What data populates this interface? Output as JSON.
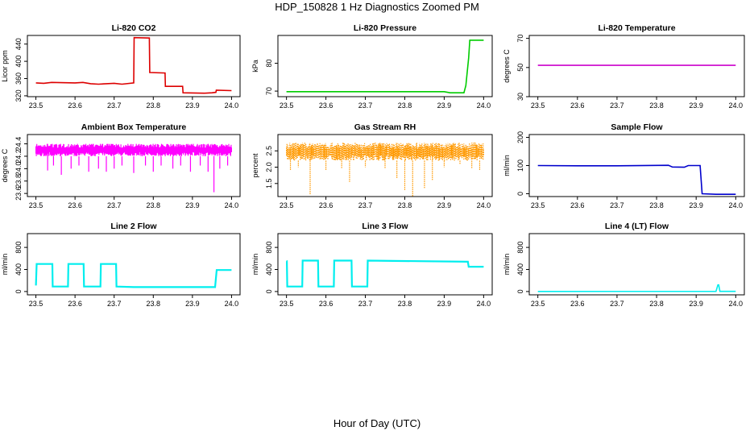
{
  "page_title": "HDP_150828  1 Hz Diagnostics Zoomed PM",
  "xlabel": "Hour of Day (UTC)",
  "chart_data": [
    {
      "type": "line",
      "title": "Li-820 CO2",
      "ylabel": "Licor ppm",
      "xlim": [
        23.5,
        24.0
      ],
      "xticks": [
        "23.5",
        "23.6",
        "23.7",
        "23.8",
        "23.9",
        "24.0"
      ],
      "ylim": [
        318,
        460
      ],
      "yticks": [
        "320",
        "360",
        "400",
        "440"
      ],
      "color": "#dd0000",
      "series": [
        {
          "x": [
            23.5,
            23.52,
            23.54,
            23.6,
            23.62,
            23.64,
            23.66,
            23.7,
            23.72,
            23.75,
            23.751,
            23.79,
            23.791,
            23.83,
            23.831,
            23.875,
            23.876,
            23.93,
            23.95,
            23.96,
            23.961,
            24.0
          ],
          "y": [
            350,
            349,
            351,
            350,
            351,
            348,
            347,
            349,
            347,
            350,
            455,
            454,
            374,
            373,
            342,
            342,
            327,
            326,
            327,
            328,
            333,
            332
          ]
        }
      ]
    },
    {
      "type": "line",
      "title": "Li-820 Pressure",
      "ylabel": "kPa",
      "xlim": [
        23.5,
        24.0
      ],
      "xticks": [
        "23.5",
        "23.6",
        "23.7",
        "23.8",
        "23.9",
        "24.0"
      ],
      "ylim": [
        68,
        90
      ],
      "yticks": [
        "70",
        "80"
      ],
      "color": "#00cc00",
      "series": [
        {
          "x": [
            23.5,
            23.7,
            23.9,
            23.915,
            23.95,
            23.955,
            23.962,
            23.965,
            24.0
          ],
          "y": [
            69.8,
            69.8,
            69.8,
            69.4,
            69.4,
            72.0,
            82.0,
            88.3,
            88.3
          ]
        }
      ]
    },
    {
      "type": "line",
      "title": "Li-820 Temperature",
      "ylabel": "degrees C",
      "xlim": [
        23.5,
        24.0
      ],
      "xticks": [
        "23.5",
        "23.6",
        "23.7",
        "23.8",
        "23.9",
        "24.0"
      ],
      "ylim": [
        30,
        72
      ],
      "yticks": [
        "30",
        "50",
        "70"
      ],
      "color": "#cc00cc",
      "series": [
        {
          "x": [
            23.5,
            24.0
          ],
          "y": [
            51.5,
            51.5
          ]
        }
      ]
    },
    {
      "type": "line",
      "title": "Ambient Box Temperature",
      "ylabel": "degrees C",
      "xlim": [
        23.5,
        24.0
      ],
      "xticks": [
        "23.5",
        "23.6",
        "23.7",
        "23.8",
        "23.9",
        "24.0"
      ],
      "ylim": [
        23.55,
        24.55
      ],
      "yticks": [
        "23.6",
        "23.8",
        "24.0",
        "24.2",
        "24.4"
      ],
      "color": "#ff00ff",
      "band": {
        "low": 24.2,
        "high": 24.4
      },
      "spikes": [
        {
          "x": 23.53,
          "y": 23.97
        },
        {
          "x": 23.545,
          "y": 24.05
        },
        {
          "x": 23.565,
          "y": 23.9
        },
        {
          "x": 23.59,
          "y": 24.0
        },
        {
          "x": 23.61,
          "y": 24.05
        },
        {
          "x": 23.635,
          "y": 23.95
        },
        {
          "x": 23.66,
          "y": 24.0
        },
        {
          "x": 23.68,
          "y": 23.95
        },
        {
          "x": 23.7,
          "y": 24.0
        },
        {
          "x": 23.72,
          "y": 24.05
        },
        {
          "x": 23.75,
          "y": 23.93
        },
        {
          "x": 23.78,
          "y": 24.05
        },
        {
          "x": 23.8,
          "y": 23.95
        },
        {
          "x": 23.82,
          "y": 24.05
        },
        {
          "x": 23.85,
          "y": 24.0
        },
        {
          "x": 23.87,
          "y": 24.05
        },
        {
          "x": 23.895,
          "y": 23.95
        },
        {
          "x": 23.92,
          "y": 24.05
        },
        {
          "x": 23.94,
          "y": 23.95
        },
        {
          "x": 23.955,
          "y": 23.62
        },
        {
          "x": 23.97,
          "y": 24.0
        },
        {
          "x": 23.99,
          "y": 24.05
        }
      ]
    },
    {
      "type": "scatter",
      "title": "Gas Stream RH",
      "ylabel": "percent",
      "xlim": [
        23.5,
        24.0
      ],
      "xticks": [
        "23.5",
        "23.6",
        "23.7",
        "23.8",
        "23.9",
        "24.0"
      ],
      "ylim": [
        1.1,
        3.0
      ],
      "yticks": [
        "1.5",
        "2.0",
        "2.5"
      ],
      "color": "#ff9900",
      "band": {
        "low": 2.2,
        "high": 2.75
      },
      "spikes": [
        {
          "x": 23.51,
          "y": 1.9
        },
        {
          "x": 23.53,
          "y": 2.0
        },
        {
          "x": 23.56,
          "y": 1.15
        },
        {
          "x": 23.6,
          "y": 1.9
        },
        {
          "x": 23.64,
          "y": 1.95
        },
        {
          "x": 23.66,
          "y": 1.55
        },
        {
          "x": 23.7,
          "y": 2.0
        },
        {
          "x": 23.75,
          "y": 1.95
        },
        {
          "x": 23.78,
          "y": 1.65
        },
        {
          "x": 23.8,
          "y": 1.3
        },
        {
          "x": 23.82,
          "y": 1.1
        },
        {
          "x": 23.85,
          "y": 1.35
        },
        {
          "x": 23.87,
          "y": 1.6
        },
        {
          "x": 23.9,
          "y": 2.0
        },
        {
          "x": 23.94,
          "y": 2.1
        },
        {
          "x": 23.97,
          "y": 1.95
        },
        {
          "x": 23.99,
          "y": 1.9
        }
      ]
    },
    {
      "type": "line",
      "title": "Sample Flow",
      "ylabel": "ml/min",
      "xlim": [
        23.5,
        24.0
      ],
      "xticks": [
        "23.5",
        "23.6",
        "23.7",
        "23.8",
        "23.9",
        "24.0"
      ],
      "ylim": [
        -10,
        210
      ],
      "yticks": [
        "0",
        "100",
        "200"
      ],
      "color": "#0000cc",
      "series": [
        {
          "x": [
            23.5,
            23.6,
            23.7,
            23.83,
            23.84,
            23.87,
            23.88,
            23.91,
            23.912,
            23.915,
            23.95,
            24.0
          ],
          "y": [
            100,
            99,
            99,
            101,
            95,
            94,
            100,
            100,
            60,
            0,
            -2,
            -2
          ]
        }
      ]
    },
    {
      "type": "line",
      "title": "Line 2 Flow",
      "ylabel": "ml/min",
      "xlim": [
        23.5,
        24.0
      ],
      "xticks": [
        "23.5",
        "23.6",
        "23.7",
        "23.8",
        "23.9",
        "24.0"
      ],
      "ylim": [
        -60,
        1050
      ],
      "yticks": [
        "0",
        "400",
        "800"
      ],
      "color": "#00eeee",
      "series": [
        {
          "x": [
            23.5,
            23.502,
            23.542,
            23.543,
            23.582,
            23.583,
            23.622,
            23.623,
            23.665,
            23.666,
            23.705,
            23.706,
            23.75,
            23.958,
            23.962,
            24.0
          ],
          "y": [
            110,
            500,
            500,
            90,
            90,
            500,
            500,
            90,
            90,
            500,
            500,
            90,
            80,
            80,
            390,
            390
          ]
        }
      ]
    },
    {
      "type": "line",
      "title": "Line 3 Flow",
      "ylabel": "ml/min",
      "xlim": [
        23.5,
        24.0
      ],
      "xticks": [
        "23.5",
        "23.6",
        "23.7",
        "23.8",
        "23.9",
        "24.0"
      ],
      "ylim": [
        -60,
        1050
      ],
      "yticks": [
        "0",
        "400",
        "800"
      ],
      "color": "#00eeee",
      "series": [
        {
          "x": [
            23.5,
            23.501,
            23.502,
            23.54,
            23.541,
            23.58,
            23.581,
            23.62,
            23.621,
            23.665,
            23.666,
            23.705,
            23.706,
            23.96,
            23.962,
            24.0
          ],
          "y": [
            550,
            550,
            90,
            90,
            560,
            560,
            90,
            90,
            560,
            560,
            90,
            90,
            560,
            540,
            450,
            450
          ]
        }
      ]
    },
    {
      "type": "line",
      "title": "Line 4 (LT) Flow",
      "ylabel": "ml/min",
      "xlim": [
        23.5,
        24.0
      ],
      "xticks": [
        "23.5",
        "23.6",
        "23.7",
        "23.8",
        "23.9",
        "24.0"
      ],
      "ylim": [
        -60,
        1050
      ],
      "yticks": [
        "0",
        "400",
        "800"
      ],
      "color": "#00eeee",
      "series": [
        {
          "x": [
            23.5,
            23.95,
            23.955,
            23.957,
            23.96,
            24.0
          ],
          "y": [
            2,
            3,
            120,
            120,
            3,
            3
          ]
        }
      ]
    }
  ]
}
